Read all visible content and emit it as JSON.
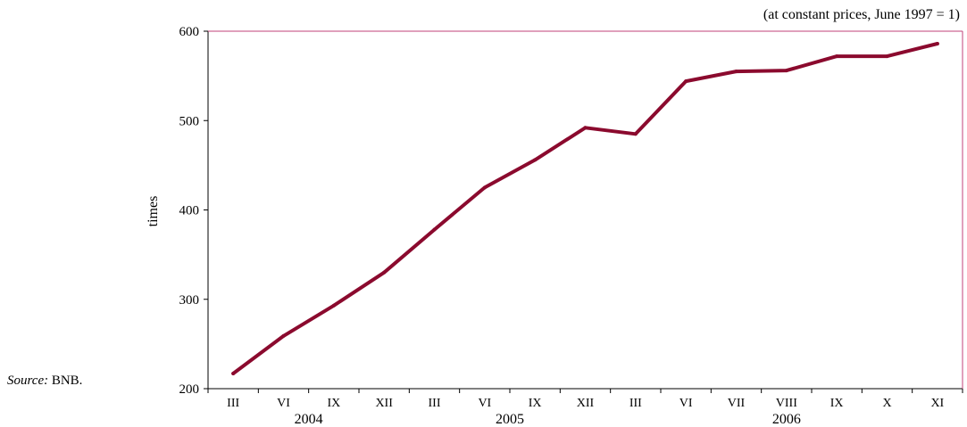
{
  "note": "(at constant prices, June 1997 = 1)",
  "source": {
    "label": "Source:",
    "value": "BNB."
  },
  "chart_data": {
    "type": "line",
    "ylabel": "times",
    "ylim": [
      200,
      600
    ],
    "yticks": [
      200,
      300,
      400,
      500,
      600
    ],
    "categories": [
      "III",
      "VI",
      "IX",
      "XII",
      "III",
      "VI",
      "IX",
      "XII",
      "III",
      "VI",
      "VII",
      "VIII",
      "IX",
      "X",
      "XI"
    ],
    "groups": [
      {
        "label": "2004",
        "start": 0,
        "end": 3
      },
      {
        "label": "2005",
        "start": 4,
        "end": 7
      },
      {
        "label": "2006",
        "start": 8,
        "end": 14
      }
    ],
    "series": [
      {
        "values": [
          217,
          259,
          293,
          330,
          378,
          425,
          456,
          492,
          485,
          544,
          555,
          556,
          572,
          572,
          586
        ]
      }
    ],
    "line_color": "#8B0A2E",
    "frame_color": "#C2427A"
  }
}
